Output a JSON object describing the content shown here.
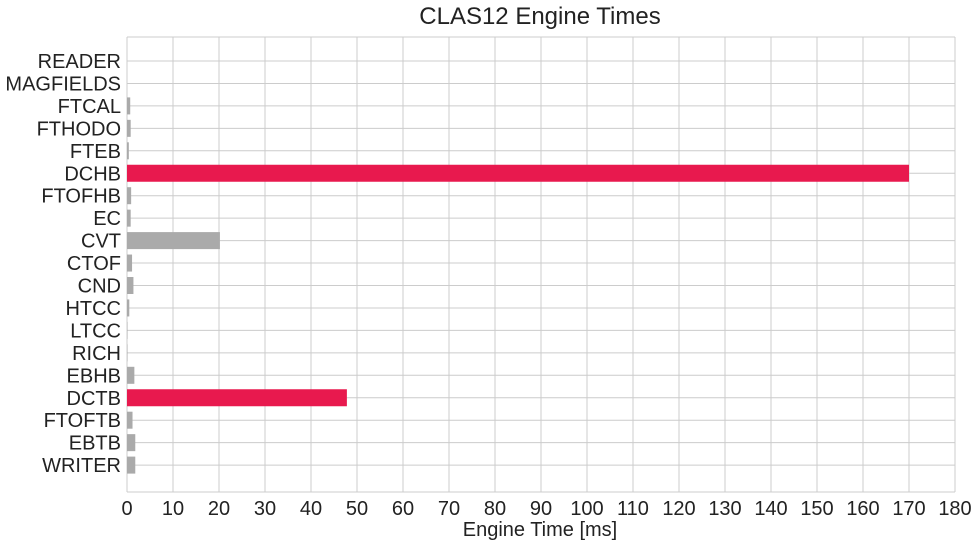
{
  "chart_data": {
    "type": "bar",
    "orientation": "horizontal",
    "title": "CLAS12 Engine Times",
    "xlabel": "Engine Time [ms]",
    "ylabel": "",
    "xlim": [
      0,
      180
    ],
    "xticks": [
      0,
      10,
      20,
      30,
      40,
      50,
      60,
      70,
      80,
      90,
      100,
      110,
      120,
      130,
      140,
      150,
      160,
      170,
      180
    ],
    "grid": true,
    "categories": [
      "READER",
      "MAGFIELDS",
      "FTCAL",
      "FTHODO",
      "FTEB",
      "DCHB",
      "FTOFHB",
      "EC",
      "CVT",
      "CTOF",
      "CND",
      "HTCC",
      "LTCC",
      "RICH",
      "EBHB",
      "DCTB",
      "FTOFTB",
      "EBTB",
      "WRITER"
    ],
    "values": [
      0,
      0,
      0.7,
      0.8,
      0.4,
      170,
      0.9,
      0.8,
      20.2,
      1.1,
      1.4,
      0.5,
      0.1,
      0.1,
      1.6,
      47.8,
      1.2,
      1.8,
      1.8
    ],
    "colors": {
      "default": "#aaaaaa",
      "highlight": "#e8194e"
    },
    "highlighted": [
      "DCHB",
      "DCTB"
    ]
  }
}
